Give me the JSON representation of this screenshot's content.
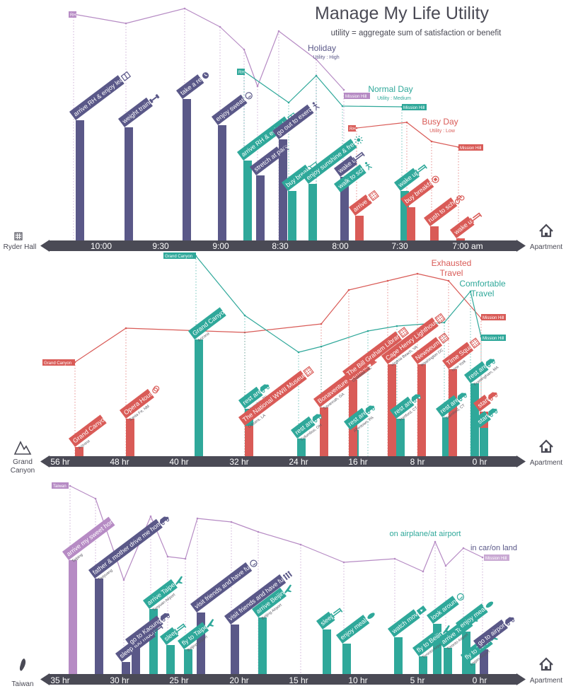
{
  "title": "Manage My Life Utility",
  "subtitle": "utility = aggregate sum of satisfaction or benefit",
  "colors": {
    "purple": "#B68BC4",
    "indigo": "#5A5888",
    "teal": "#2FA89A",
    "red": "#D95B57",
    "axis": "#4A4A55",
    "light_purple": "#C9A9D3"
  },
  "panels": [
    {
      "origin_label": "Ryder Hall",
      "origin_icon": "building-icon",
      "dest_label": "Apartment",
      "dest_icon": "house-icon",
      "axis_ticks": [
        "10:00",
        "9:30",
        "9:00",
        "8:30",
        "8:00",
        "7:30",
        "7:00 am"
      ],
      "legend": [
        {
          "name": "Holiday",
          "sub": "Utility : High",
          "color": "indigo"
        },
        {
          "name": "Normal Day",
          "sub": "Utility : Medium",
          "color": "teal"
        },
        {
          "name": "Busy Day",
          "sub": "Utility : Low",
          "color": "red"
        }
      ],
      "point_labels": [
        {
          "text": "RH",
          "color": "purple"
        },
        {
          "text": "Mission Hill",
          "color": "purple"
        },
        {
          "text": "RH",
          "color": "teal"
        },
        {
          "text": "Mission Hill",
          "color": "teal"
        },
        {
          "text": "RH",
          "color": "red"
        },
        {
          "text": "Mission Hill",
          "color": "red"
        }
      ],
      "events": [
        {
          "label": "arrive RH & enjoy learning",
          "sub": "",
          "icon": "book-icon",
          "color": "indigo"
        },
        {
          "label": "weight training",
          "sub": "",
          "icon": "dumbbell-icon",
          "color": "indigo"
        },
        {
          "label": "take a rest",
          "sub": "",
          "icon": "clock-icon",
          "color": "indigo"
        },
        {
          "label": "enjoy sweating",
          "sub": "",
          "icon": "smile-icon",
          "color": "indigo"
        },
        {
          "label": "arrive RH & enjoy learning",
          "sub": "",
          "icon": "book-icon",
          "color": "teal"
        },
        {
          "label": "stretch at park",
          "sub": "",
          "icon": "stretch-icon",
          "color": "indigo"
        },
        {
          "label": "go out to exercise",
          "sub": "",
          "icon": "runner-icon",
          "color": "indigo"
        },
        {
          "label": "buy breakfast",
          "sub": "",
          "icon": "cart-icon",
          "color": "teal"
        },
        {
          "label": "enjoy sunshine & fresh air",
          "sub": "",
          "icon": "sun-icon",
          "color": "teal"
        },
        {
          "label": "walk to school",
          "sub": "",
          "icon": "walk-icon",
          "color": "teal"
        },
        {
          "label": "wake up",
          "sub": "",
          "icon": "bed-icon",
          "color": "indigo"
        },
        {
          "label": "arrive RH",
          "sub": "",
          "icon": "building-icon",
          "color": "red"
        },
        {
          "label": "wake up",
          "sub": "",
          "icon": "bed-icon",
          "color": "teal"
        },
        {
          "label": "buy breakfast",
          "sub": "",
          "icon": "coffee-icon",
          "color": "red"
        },
        {
          "label": "rush to school",
          "sub": "",
          "icon": "bike-icon",
          "color": "red"
        },
        {
          "label": "wake up",
          "sub": "",
          "icon": "bed-icon",
          "color": "red"
        }
      ]
    },
    {
      "origin_label": "Grand Canyon",
      "origin_label_lines": [
        "Grand",
        "Canyon"
      ],
      "origin_icon": "mountain-icon",
      "dest_label": "Apartment",
      "dest_icon": "house-icon",
      "axis_ticks": [
        "56 hr",
        "48 hr",
        "40 hr",
        "32 hr",
        "24 hr",
        "16 hr",
        "8 hr",
        "0 hr"
      ],
      "legend": [
        {
          "name": "Exhausted Travel",
          "lines": [
            "Exhausted",
            "Travel"
          ],
          "color": "red"
        },
        {
          "name": "Comfortable Travel",
          "lines": [
            "Comfortable",
            "Travel"
          ],
          "color": "teal"
        }
      ],
      "point_labels": [
        {
          "text": "Grand Canyon",
          "color": "teal"
        },
        {
          "text": "Grand Canyon",
          "color": "red"
        },
        {
          "text": "Mission Hill",
          "color": "red"
        },
        {
          "text": "Mission Hill",
          "color": "teal"
        }
      ],
      "events": [
        {
          "label": "Grand Canyon",
          "sub": "Arizona",
          "icon": "",
          "color": "red"
        },
        {
          "label": "Opera House",
          "sub": "Santa Fe, NM",
          "icon": "theater-icon",
          "color": "red"
        },
        {
          "label": "Grand Canyon",
          "sub": "Arizona",
          "icon": "",
          "color": "teal"
        },
        {
          "label": "rest area",
          "sub": "Memphis, TN",
          "icon": "car-icon",
          "color": "teal"
        },
        {
          "label": "The National WWII Museum",
          "sub": "Orleans, LA",
          "icon": "building-icon",
          "color": "red"
        },
        {
          "label": "rest area",
          "sub": "Columbus, OH",
          "icon": "car-icon",
          "color": "teal"
        },
        {
          "label": "Bonaventure Cemetery",
          "sub": "Savannah, GA",
          "icon": "bell-icon",
          "color": "red"
        },
        {
          "label": "rest area",
          "sub": "Allentown, PA",
          "icon": "car-icon",
          "color": "teal"
        },
        {
          "label": "The Bill Graham Library",
          "sub": "Charlotte, NC",
          "icon": "building-icon",
          "color": "red"
        },
        {
          "label": "rest area",
          "sub": "Hartford, CT",
          "icon": "car-icon",
          "color": "teal"
        },
        {
          "label": "Cape Henry Lighthouse",
          "sub": "Virginia Beach, VA",
          "icon": "building-icon",
          "color": "red"
        },
        {
          "label": "Newseum",
          "sub": "Washington DC",
          "icon": "building-icon",
          "color": "red"
        },
        {
          "label": "rest area",
          "sub": "Stamford, CT",
          "icon": "car-icon",
          "color": "teal"
        },
        {
          "label": "Time Square",
          "sub": "New York",
          "icon": "building-icon",
          "color": "red"
        },
        {
          "label": "rest area",
          "sub": "Framingham, MA",
          "icon": "car-icon",
          "color": "teal"
        },
        {
          "label": "start",
          "sub": "",
          "icon": "car-icon",
          "color": "red"
        },
        {
          "label": "start",
          "sub": "",
          "icon": "car-icon",
          "color": "teal"
        }
      ]
    },
    {
      "origin_label": "Taiwan",
      "origin_icon": "taiwan-icon",
      "dest_label": "Apartment",
      "dest_icon": "house-icon",
      "axis_ticks": [
        "35 hr",
        "30 hr",
        "25 hr",
        "20 hr",
        "15 hr",
        "10 hr",
        "5 hr",
        "0 hr"
      ],
      "legend": [
        {
          "name": "on airplane/at airport",
          "color": "teal"
        },
        {
          "name": "in car/on land",
          "color": "indigo"
        }
      ],
      "point_labels": [
        {
          "text": "Taiwan",
          "color": "purple"
        },
        {
          "text": "Mission Hill",
          "color": "purple"
        }
      ],
      "events": [
        {
          "label": "arrive my sweet home",
          "sub": "Taiping",
          "icon": "",
          "color": "purple"
        },
        {
          "label": "father & mother drive me home",
          "sub": "Taoyuang",
          "icon": "car-icon",
          "color": "indigo"
        },
        {
          "label": "sleep too much",
          "sub": "",
          "icon": "bed-icon",
          "color": "indigo"
        },
        {
          "label": "go to Kaoung",
          "sub": "",
          "icon": "car-icon",
          "color": "indigo"
        },
        {
          "label": "arrive Taipei",
          "sub": "Taoyuan Airport",
          "icon": "plane-icon",
          "color": "teal"
        },
        {
          "label": "sleep",
          "sub": "",
          "icon": "bed-icon",
          "color": "teal"
        },
        {
          "label": "fly to Taipei",
          "sub": "Beijing Airport",
          "icon": "plane-icon",
          "color": "teal"
        },
        {
          "label": "visit friends and have fun",
          "sub": "",
          "icon": "smile-icon",
          "color": "indigo"
        },
        {
          "label": "visit friends and have fun",
          "sub": "",
          "icon": "people-icon",
          "color": "indigo"
        },
        {
          "label": "arrive Beijing",
          "sub": "Beijing Airport",
          "icon": "plane-icon",
          "color": "teal"
        },
        {
          "label": "sleep",
          "sub": "",
          "icon": "bed-icon",
          "color": "teal"
        },
        {
          "label": "enjoy meals",
          "sub": "",
          "icon": "food-icon",
          "color": "teal"
        },
        {
          "label": "watch movies",
          "sub": "",
          "icon": "screen-icon",
          "color": "teal"
        },
        {
          "label": "fly to Beijing",
          "sub": "Toronto Airport",
          "icon": "plane-icon",
          "color": "teal"
        },
        {
          "label": "look around",
          "sub": "",
          "icon": "smile-icon",
          "color": "teal"
        },
        {
          "label": "arrive Toronto",
          "sub": "Toronto Airport",
          "icon": "plane-icon",
          "color": "teal"
        },
        {
          "label": "enjoy meals",
          "sub": "",
          "icon": "food-icon",
          "color": "teal"
        },
        {
          "label": "fly to Toronto",
          "sub": "Logan Airport",
          "icon": "plane-icon",
          "color": "teal"
        },
        {
          "label": "go to airport",
          "sub": "",
          "icon": "car-icon",
          "color": "indigo"
        }
      ]
    }
  ]
}
